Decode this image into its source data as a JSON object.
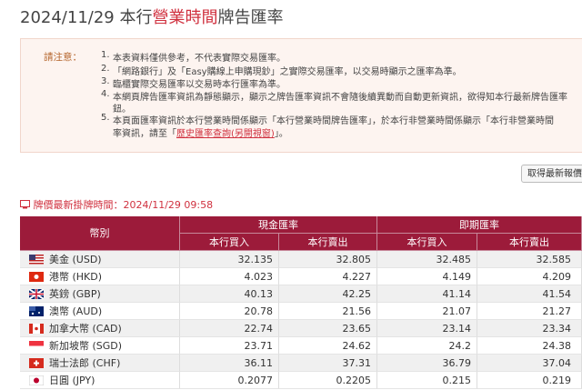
{
  "header": {
    "title_prefix": "2024/11/29 本行",
    "title_highlight": "營業時間",
    "title_suffix": "牌告匯率"
  },
  "notice": {
    "label": "請注意：",
    "items": [
      {
        "number": "1.",
        "lines": [
          "本表資料僅供參考，不代表實際交易匯率。"
        ]
      },
      {
        "number": "2.",
        "lines": [
          "「網路銀行」及「Easy購線上申購現鈔」之實際交易匯率，以交易時顯示之匯率為準。"
        ]
      },
      {
        "number": "3.",
        "lines": [
          "臨櫃實際交易匯率以交易時本行匯率為準。"
        ]
      },
      {
        "number": "4.",
        "lines": [
          "本網頁牌告匯率資訊為靜態顯示，顯示之牌告匯率資訊不會隨後續異動而自動更新資訊，欲得知本行最新牌告匯率",
          "鈕。"
        ]
      },
      {
        "number": "5.",
        "lines": [
          "本頁面匯率資訊於本行營業時間係顯示「本行營業時間牌告匯率」，於本行非營業時間係顯示「本行非營業時間",
          "率資訊，請至「"
        ],
        "link": "歷史匯率查詢(另開視窗)",
        "after_link": "」。"
      }
    ]
  },
  "refresh_button": "取得最新報價",
  "update_time": {
    "label": "牌價最新掛牌時間：",
    "value": "2024/11/29 09:58"
  },
  "table": {
    "currency_header": "幣別",
    "groups": [
      "現金匯率",
      "即期匯率"
    ],
    "subheaders": [
      "本行買入",
      "本行賣出",
      "本行買入",
      "本行賣出"
    ],
    "rows": [
      [
        "美金 (USD)",
        32.135,
        32.805,
        32.485,
        32.585
      ],
      [
        "港幣 (HKD)",
        4.023,
        4.227,
        4.149,
        4.209
      ],
      [
        "英鎊 (GBP)",
        40.13,
        42.25,
        41.14,
        41.54
      ],
      [
        "澳幣 (AUD)",
        20.78,
        21.56,
        21.07,
        21.27
      ],
      [
        "加拿大幣 (CAD)",
        22.74,
        23.65,
        23.14,
        23.34
      ],
      [
        "新加坡幣 (SGD)",
        23.71,
        24.62,
        24.2,
        24.38
      ],
      [
        "瑞士法郎 (CHF)",
        36.11,
        37.31,
        36.79,
        37.04
      ],
      [
        "日圓 (JPY)",
        0.2077,
        0.2205,
        0.215,
        0.219
      ]
    ]
  }
}
